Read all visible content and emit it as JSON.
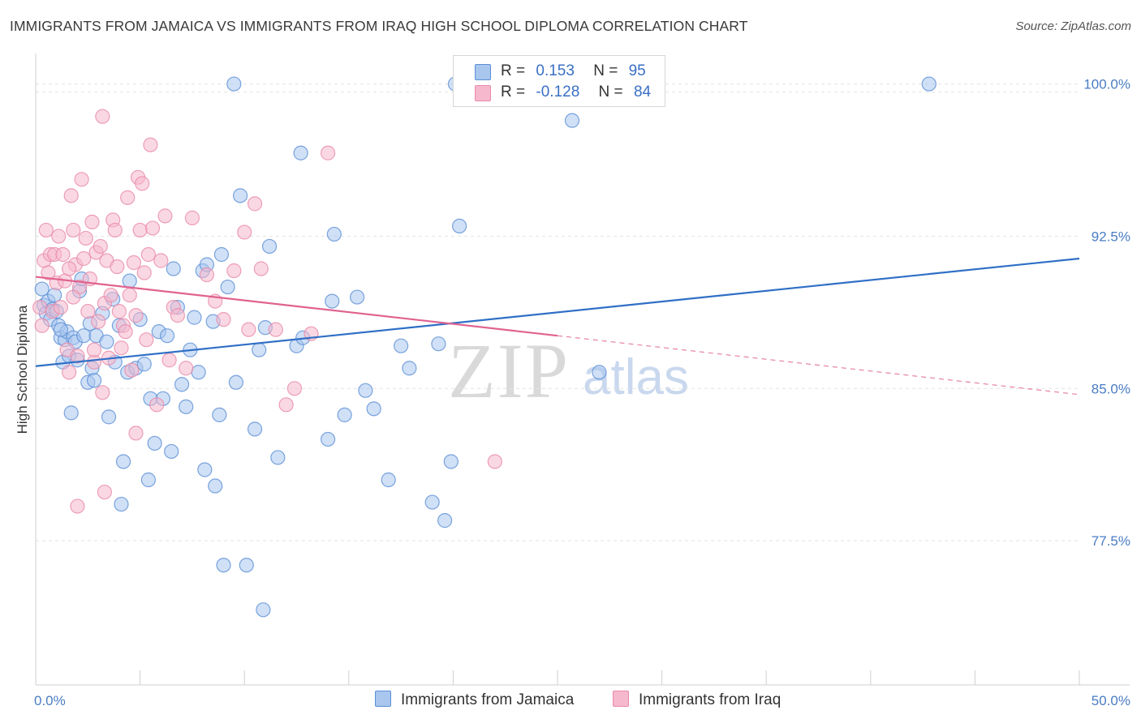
{
  "title": "IMMIGRANTS FROM JAMAICA VS IMMIGRANTS FROM IRAQ HIGH SCHOOL DIPLOMA CORRELATION CHART",
  "source": "Source: ZipAtlas.com",
  "watermark": {
    "zip": "ZIP",
    "atlas": "atlas"
  },
  "colors": {
    "blue_fill": "#a9c6ee",
    "blue_stroke": "#5b8fd6",
    "blue_line": "#2f6fc6",
    "pink_fill": "#f6b8cc",
    "pink_stroke": "#e98aa9",
    "pink_line": "#e0628f",
    "grid": "#e2e2e2",
    "axis_text": "#4a7cc4"
  },
  "legend": {
    "rows": [
      {
        "r_label": "R =",
        "r_value": "0.153",
        "n_label": "N =",
        "n_value": "95"
      },
      {
        "r_label": "R =",
        "r_value": "-0.128",
        "n_label": "N =",
        "n_value": "84"
      }
    ],
    "placement": "top-center"
  },
  "chart_data": {
    "type": "scatter",
    "title": "IMMIGRANTS FROM JAMAICA VS IMMIGRANTS FROM IRAQ HIGH SCHOOL DIPLOMA CORRELATION CHART",
    "xlabel": "",
    "ylabel": "High School Diploma",
    "xlim": [
      0,
      50
    ],
    "ylim": [
      70.4,
      101.5
    ],
    "x_tick_labels": [
      "0.0%",
      "50.0%"
    ],
    "y_ticks": [
      77.5,
      85.0,
      92.5,
      100.0
    ],
    "y_tick_labels": [
      "77.5%",
      "85.0%",
      "92.5%",
      "100.0%"
    ],
    "grid": true,
    "series": [
      {
        "name": "Immigrants from Jamaica",
        "trend": {
          "x": [
            0,
            50
          ],
          "y": [
            86.1,
            91.4
          ],
          "dashed_from": null
        },
        "points": [
          [
            0.3,
            89.9
          ],
          [
            0.4,
            89.1
          ],
          [
            0.5,
            88.7
          ],
          [
            0.6,
            89.3
          ],
          [
            0.7,
            88.4
          ],
          [
            0.8,
            88.9
          ],
          [
            0.9,
            89.6
          ],
          [
            1.0,
            88.8
          ],
          [
            1.1,
            88.1
          ],
          [
            1.2,
            87.5
          ],
          [
            1.3,
            86.3
          ],
          [
            1.4,
            87.4
          ],
          [
            1.5,
            87.8
          ],
          [
            1.6,
            86.6
          ],
          [
            1.7,
            83.8
          ],
          [
            1.8,
            87.5
          ],
          [
            1.9,
            87.3
          ],
          [
            2.0,
            86.4
          ],
          [
            2.1,
            89.8
          ],
          [
            2.2,
            90.4
          ],
          [
            2.3,
            87.6
          ],
          [
            2.5,
            85.3
          ],
          [
            2.6,
            88.2
          ],
          [
            2.7,
            86.0
          ],
          [
            2.8,
            85.4
          ],
          [
            2.9,
            87.6
          ],
          [
            3.2,
            88.7
          ],
          [
            3.4,
            87.3
          ],
          [
            3.5,
            83.6
          ],
          [
            3.7,
            89.4
          ],
          [
            3.8,
            86.3
          ],
          [
            4.0,
            88.1
          ],
          [
            4.1,
            79.3
          ],
          [
            4.2,
            81.4
          ],
          [
            4.4,
            85.8
          ],
          [
            4.5,
            90.3
          ],
          [
            4.8,
            86.0
          ],
          [
            5.0,
            88.4
          ],
          [
            5.2,
            86.2
          ],
          [
            5.4,
            80.5
          ],
          [
            5.5,
            84.5
          ],
          [
            5.7,
            82.3
          ],
          [
            5.9,
            87.8
          ],
          [
            6.1,
            84.5
          ],
          [
            6.3,
            87.6
          ],
          [
            6.5,
            81.9
          ],
          [
            6.6,
            90.9
          ],
          [
            6.8,
            89.0
          ],
          [
            7.0,
            85.2
          ],
          [
            7.2,
            84.1
          ],
          [
            7.4,
            86.9
          ],
          [
            7.6,
            88.5
          ],
          [
            7.8,
            85.8
          ],
          [
            8.0,
            90.8
          ],
          [
            8.1,
            81.0
          ],
          [
            8.2,
            91.1
          ],
          [
            8.5,
            88.3
          ],
          [
            8.6,
            80.2
          ],
          [
            8.8,
            83.7
          ],
          [
            8.9,
            91.6
          ],
          [
            9.0,
            76.3
          ],
          [
            9.2,
            90.0
          ],
          [
            9.5,
            100.0
          ],
          [
            9.6,
            85.3
          ],
          [
            9.8,
            94.5
          ],
          [
            10.1,
            76.3
          ],
          [
            10.5,
            83.0
          ],
          [
            10.7,
            86.9
          ],
          [
            10.9,
            74.1
          ],
          [
            11.0,
            88.0
          ],
          [
            11.2,
            92.0
          ],
          [
            11.6,
            81.6
          ],
          [
            12.5,
            87.1
          ],
          [
            12.7,
            96.6
          ],
          [
            12.8,
            87.5
          ],
          [
            14.0,
            82.5
          ],
          [
            14.2,
            89.3
          ],
          [
            14.3,
            92.6
          ],
          [
            14.8,
            83.7
          ],
          [
            15.4,
            89.5
          ],
          [
            15.8,
            84.9
          ],
          [
            16.2,
            84.0
          ],
          [
            16.9,
            80.5
          ],
          [
            17.5,
            87.1
          ],
          [
            17.9,
            86.0
          ],
          [
            19.0,
            79.4
          ],
          [
            19.3,
            87.2
          ],
          [
            19.6,
            78.5
          ],
          [
            19.9,
            81.4
          ],
          [
            20.3,
            93.0
          ],
          [
            20.1,
            100.0
          ],
          [
            25.7,
            98.2
          ],
          [
            27.0,
            85.8
          ],
          [
            42.8,
            100.0
          ],
          [
            1.2,
            87.9
          ]
        ]
      },
      {
        "name": "Immigrants from Iraq",
        "trend": {
          "x": [
            0,
            50
          ],
          "y": [
            90.5,
            84.7
          ],
          "dashed_from": 25
        },
        "points": [
          [
            0.2,
            89.0
          ],
          [
            0.3,
            88.1
          ],
          [
            0.4,
            91.3
          ],
          [
            0.5,
            92.8
          ],
          [
            0.6,
            90.7
          ],
          [
            0.7,
            91.6
          ],
          [
            0.8,
            88.8
          ],
          [
            0.9,
            91.6
          ],
          [
            1.0,
            90.2
          ],
          [
            1.1,
            92.5
          ],
          [
            1.2,
            89.0
          ],
          [
            1.3,
            91.6
          ],
          [
            1.4,
            90.3
          ],
          [
            1.5,
            86.9
          ],
          [
            1.6,
            85.8
          ],
          [
            1.7,
            94.5
          ],
          [
            1.8,
            92.8
          ],
          [
            1.9,
            91.1
          ],
          [
            2.0,
            86.6
          ],
          [
            2.1,
            90.0
          ],
          [
            2.2,
            95.3
          ],
          [
            2.3,
            91.4
          ],
          [
            2.4,
            92.4
          ],
          [
            2.5,
            88.8
          ],
          [
            2.6,
            90.4
          ],
          [
            2.7,
            93.2
          ],
          [
            2.8,
            86.3
          ],
          [
            2.9,
            91.7
          ],
          [
            3.0,
            88.3
          ],
          [
            3.1,
            92.0
          ],
          [
            3.2,
            84.8
          ],
          [
            3.3,
            89.2
          ],
          [
            3.4,
            91.3
          ],
          [
            3.5,
            86.5
          ],
          [
            3.6,
            89.6
          ],
          [
            3.7,
            93.3
          ],
          [
            3.8,
            92.8
          ],
          [
            3.9,
            91.0
          ],
          [
            4.0,
            88.8
          ],
          [
            4.1,
            87.0
          ],
          [
            4.2,
            88.1
          ],
          [
            4.3,
            87.8
          ],
          [
            4.4,
            94.4
          ],
          [
            4.5,
            89.6
          ],
          [
            4.6,
            85.9
          ],
          [
            4.7,
            91.2
          ],
          [
            4.8,
            88.6
          ],
          [
            4.9,
            95.4
          ],
          [
            5.0,
            92.8
          ],
          [
            5.1,
            95.1
          ],
          [
            5.2,
            90.7
          ],
          [
            5.3,
            87.4
          ],
          [
            5.4,
            91.6
          ],
          [
            5.5,
            97.0
          ],
          [
            5.6,
            92.9
          ],
          [
            5.8,
            84.2
          ],
          [
            6.0,
            91.3
          ],
          [
            6.2,
            93.5
          ],
          [
            6.4,
            86.4
          ],
          [
            6.6,
            89.0
          ],
          [
            6.8,
            88.6
          ],
          [
            7.2,
            86.0
          ],
          [
            7.5,
            93.4
          ],
          [
            8.2,
            90.6
          ],
          [
            8.6,
            89.3
          ],
          [
            9.0,
            88.4
          ],
          [
            9.5,
            90.8
          ],
          [
            10.0,
            92.7
          ],
          [
            10.2,
            87.9
          ],
          [
            10.5,
            94.1
          ],
          [
            10.8,
            90.9
          ],
          [
            11.5,
            87.9
          ],
          [
            12.0,
            84.2
          ],
          [
            12.4,
            85.0
          ],
          [
            13.2,
            87.7
          ],
          [
            14.0,
            96.6
          ],
          [
            22.0,
            81.4
          ],
          [
            3.2,
            98.4
          ],
          [
            2.0,
            79.2
          ],
          [
            3.3,
            79.9
          ],
          [
            4.8,
            82.8
          ],
          [
            1.8,
            89.5
          ],
          [
            1.6,
            90.9
          ],
          [
            2.8,
            86.9
          ]
        ]
      }
    ]
  },
  "bottom_legend": [
    "Immigrants from Jamaica",
    "Immigrants from Iraq"
  ]
}
